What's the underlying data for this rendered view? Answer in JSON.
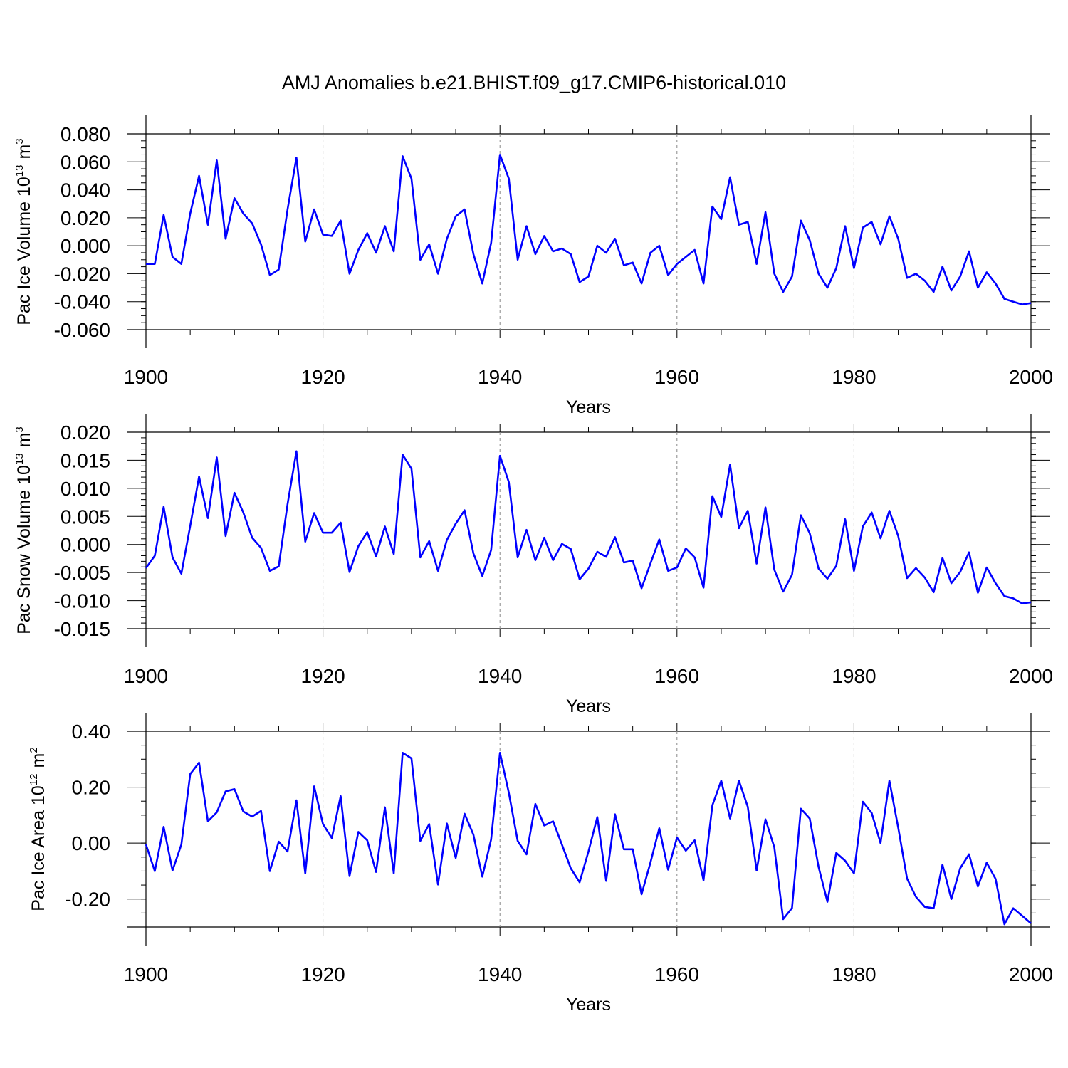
{
  "figure_title": "AMJ Anomalies b.e21.BHIST.f09_g17.CMIP6-historical.010",
  "colors": {
    "series": "#0000ff",
    "axis": "#000000",
    "grid": "#888888"
  },
  "chart_data": [
    {
      "type": "line",
      "title": "AMJ Anomalies b.e21.BHIST.f09_g17.CMIP6-historical.010",
      "xlabel": "Years",
      "ylabel": {
        "text": "Pac Ice Volume 10",
        "exponent": "13",
        "unit": "m",
        "unit_exponent": "3"
      },
      "xlim": [
        1900,
        2000
      ],
      "ylim": [
        -0.06,
        0.08
      ],
      "x_ticks": [
        1900,
        1920,
        1940,
        1960,
        1980,
        2000
      ],
      "x_tick_labels": [
        "1900",
        "1920",
        "1940",
        "1960",
        "1980",
        "2000"
      ],
      "y_ticks": [
        -0.06,
        -0.04,
        -0.02,
        0.0,
        0.02,
        0.04,
        0.06,
        0.08
      ],
      "y_tick_labels": [
        "-0.060",
        "-0.040",
        "-0.020",
        "0.000",
        "0.020",
        "0.040",
        "0.060",
        "0.080"
      ],
      "y_minor_step": 0.005,
      "x_grid": [
        1920,
        1940,
        1960,
        1980
      ],
      "x_start": 1900,
      "series": [
        {
          "name": "Pac Ice Volume",
          "color": "#0000ff",
          "values": [
            -0.013,
            -0.013,
            0.022,
            -0.008,
            -0.013,
            0.023,
            0.05,
            0.015,
            0.061,
            0.005,
            0.034,
            0.023,
            0.016,
            0.001,
            -0.021,
            -0.017,
            0.026,
            0.063,
            0.003,
            0.026,
            0.008,
            0.007,
            0.018,
            -0.02,
            -0.003,
            0.009,
            -0.005,
            0.014,
            -0.004,
            0.064,
            0.048,
            -0.01,
            0.001,
            -0.02,
            0.005,
            0.021,
            0.026,
            -0.006,
            -0.027,
            0.002,
            0.065,
            0.048,
            -0.01,
            0.014,
            -0.006,
            0.007,
            -0.004,
            -0.002,
            -0.006,
            -0.026,
            -0.022,
            0.0,
            -0.005,
            0.005,
            -0.014,
            -0.012,
            -0.027,
            -0.005,
            0.0,
            -0.021,
            -0.013,
            -0.008,
            -0.003,
            -0.027,
            0.028,
            0.019,
            0.049,
            0.015,
            0.017,
            -0.013,
            0.024,
            -0.02,
            -0.033,
            -0.022,
            0.018,
            0.004,
            -0.02,
            -0.03,
            -0.016,
            0.014,
            -0.016,
            0.013,
            0.017,
            0.001,
            0.021,
            0.005,
            -0.023,
            -0.02,
            -0.025,
            -0.033,
            -0.015,
            -0.032,
            -0.022,
            -0.004,
            -0.03,
            -0.019,
            -0.027,
            -0.038,
            -0.04,
            -0.042,
            -0.041
          ]
        }
      ]
    },
    {
      "type": "line",
      "xlabel": "Years",
      "ylabel": {
        "text": "Pac Snow Volume 10",
        "exponent": "13",
        "unit": "m",
        "unit_exponent": "3"
      },
      "xlim": [
        1900,
        2000
      ],
      "ylim": [
        -0.015,
        0.02
      ],
      "x_ticks": [
        1900,
        1920,
        1940,
        1960,
        1980,
        2000
      ],
      "x_tick_labels": [
        "1900",
        "1920",
        "1940",
        "1960",
        "1980",
        "2000"
      ],
      "y_ticks": [
        -0.015,
        -0.01,
        -0.005,
        0.0,
        0.005,
        0.01,
        0.015,
        0.02
      ],
      "y_tick_labels": [
        "-0.015",
        "-0.010",
        "-0.005",
        "0.000",
        "0.005",
        "0.010",
        "0.015",
        "0.020"
      ],
      "y_minor_step": 0.001,
      "x_grid": [
        1920,
        1940,
        1960,
        1980
      ],
      "x_start": 1900,
      "series": [
        {
          "name": "Pac Snow Volume",
          "color": "#0000ff",
          "values": [
            -0.0042,
            -0.002,
            0.0067,
            -0.0023,
            -0.0052,
            0.0033,
            0.0121,
            0.0047,
            0.0155,
            0.0015,
            0.0092,
            0.0057,
            0.0012,
            -0.0006,
            -0.0047,
            -0.0039,
            0.0072,
            0.0166,
            0.0005,
            0.0056,
            0.0021,
            0.0021,
            0.0039,
            -0.0049,
            -0.0003,
            0.0022,
            -0.0021,
            0.0032,
            -0.0017,
            0.016,
            0.0135,
            -0.0023,
            0.0006,
            -0.0047,
            0.0008,
            0.0037,
            0.0061,
            -0.0016,
            -0.0056,
            -0.001,
            0.0158,
            0.0111,
            -0.0023,
            0.0026,
            -0.0028,
            0.0012,
            -0.0028,
            0.0001,
            -0.0008,
            -0.0062,
            -0.0043,
            -0.0013,
            -0.0022,
            0.0013,
            -0.0032,
            -0.0029,
            -0.0078,
            -0.0034,
            0.0009,
            -0.0047,
            -0.0041,
            -0.0007,
            -0.0023,
            -0.0077,
            0.0086,
            0.0049,
            0.0142,
            0.0029,
            0.006,
            -0.0034,
            0.0066,
            -0.0045,
            -0.0084,
            -0.0054,
            0.0052,
            0.002,
            -0.0043,
            -0.0061,
            -0.0038,
            0.0045,
            -0.0047,
            0.0032,
            0.0057,
            0.0011,
            0.006,
            0.0015,
            -0.006,
            -0.0042,
            -0.0059,
            -0.0085,
            -0.0024,
            -0.0069,
            -0.0049,
            -0.0014,
            -0.0086,
            -0.0041,
            -0.0069,
            -0.0092,
            -0.0096,
            -0.0105,
            -0.0103
          ]
        }
      ]
    },
    {
      "type": "line",
      "xlabel": "Years",
      "ylabel": {
        "text": "Pac Ice Area 10",
        "exponent": "12",
        "unit": "m",
        "unit_exponent": "2"
      },
      "xlim": [
        1900,
        2000
      ],
      "ylim": [
        -0.3,
        0.4
      ],
      "x_ticks": [
        1900,
        1920,
        1940,
        1960,
        1980,
        2000
      ],
      "x_tick_labels": [
        "1900",
        "1920",
        "1940",
        "1960",
        "1980",
        "2000"
      ],
      "y_ticks": [
        -0.2,
        0.0,
        0.2,
        0.4
      ],
      "y_tick_labels": [
        "-0.20",
        "0.00",
        "0.20",
        "0.40"
      ],
      "y_minor_step": 0.05,
      "x_grid": [
        1920,
        1940,
        1960,
        1980
      ],
      "x_start": 1900,
      "series": [
        {
          "name": "Pac Ice Area",
          "color": "#0000ff",
          "values": [
            -0.005,
            -0.1,
            0.058,
            -0.098,
            -0.005,
            0.247,
            0.288,
            0.078,
            0.11,
            0.185,
            0.193,
            0.113,
            0.095,
            0.115,
            -0.1,
            0.005,
            -0.03,
            0.153,
            -0.108,
            0.203,
            0.068,
            0.018,
            0.168,
            -0.118,
            0.04,
            0.01,
            -0.103,
            0.128,
            -0.108,
            0.323,
            0.303,
            0.008,
            0.068,
            -0.148,
            0.07,
            -0.053,
            0.105,
            0.03,
            -0.12,
            0.013,
            0.323,
            0.18,
            0.008,
            -0.04,
            0.14,
            0.063,
            0.078,
            -0.005,
            -0.09,
            -0.14,
            -0.03,
            0.093,
            -0.135,
            0.103,
            -0.022,
            -0.022,
            -0.183,
            -0.07,
            0.053,
            -0.095,
            0.02,
            -0.027,
            0.01,
            -0.133,
            0.135,
            0.223,
            0.088,
            0.223,
            0.13,
            -0.098,
            0.085,
            -0.015,
            -0.272,
            -0.232,
            0.123,
            0.088,
            -0.085,
            -0.21,
            -0.035,
            -0.063,
            -0.108,
            0.148,
            0.108,
            0.0,
            0.223,
            0.055,
            -0.127,
            -0.192,
            -0.228,
            -0.233,
            -0.077,
            -0.2,
            -0.09,
            -0.04,
            -0.155,
            -0.07,
            -0.128,
            -0.29,
            -0.233,
            -0.26,
            -0.287
          ]
        }
      ]
    }
  ]
}
